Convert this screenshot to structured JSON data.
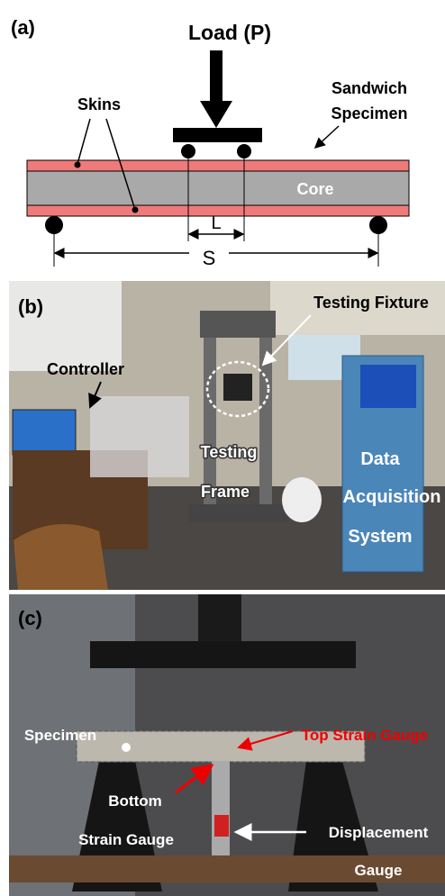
{
  "panel_a": {
    "label": "(a)",
    "load": "Load (P)",
    "specimen": [
      "Sandwich",
      "Specimen"
    ],
    "skins": "Skins",
    "core": "Core",
    "span_l": "L",
    "span_s": "S"
  },
  "panel_b": {
    "label": "(b)",
    "testing_fixture": "Testing Fixture",
    "controller": "Controller",
    "testing_frame": [
      "Testing",
      "Frame"
    ],
    "data_acquisition": [
      "Data",
      "Acquisition",
      "System"
    ]
  },
  "panel_c": {
    "label": "(c)",
    "specimen": "Specimen",
    "top_strain_gauge": "Top Strain Gauge",
    "bottom_strain_gauge": [
      "Bottom",
      "Strain Gauge"
    ],
    "displacement_gauge": [
      "Displacement",
      "Gauge"
    ]
  }
}
